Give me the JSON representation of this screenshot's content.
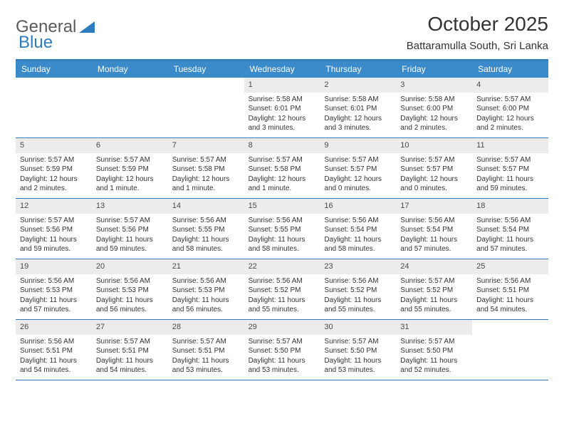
{
  "brand": {
    "part1": "General",
    "part2": "Blue"
  },
  "title": "October 2025",
  "location": "Battaramulla South, Sri Lanka",
  "colors": {
    "header_bg": "#3b8bca",
    "header_text": "#ffffff",
    "border": "#2f7bbf",
    "daynum_bg": "#ececec",
    "body_text": "#333333",
    "brand_grey": "#5a5a5a",
    "brand_blue": "#2f7bbf",
    "page_bg": "#ffffff"
  },
  "day_names": [
    "Sunday",
    "Monday",
    "Tuesday",
    "Wednesday",
    "Thursday",
    "Friday",
    "Saturday"
  ],
  "weeks": [
    [
      {
        "day": "",
        "sunrise": "",
        "sunset": "",
        "daylight": ""
      },
      {
        "day": "",
        "sunrise": "",
        "sunset": "",
        "daylight": ""
      },
      {
        "day": "",
        "sunrise": "",
        "sunset": "",
        "daylight": ""
      },
      {
        "day": "1",
        "sunrise": "Sunrise: 5:58 AM",
        "sunset": "Sunset: 6:01 PM",
        "daylight": "Daylight: 12 hours and 3 minutes."
      },
      {
        "day": "2",
        "sunrise": "Sunrise: 5:58 AM",
        "sunset": "Sunset: 6:01 PM",
        "daylight": "Daylight: 12 hours and 3 minutes."
      },
      {
        "day": "3",
        "sunrise": "Sunrise: 5:58 AM",
        "sunset": "Sunset: 6:00 PM",
        "daylight": "Daylight: 12 hours and 2 minutes."
      },
      {
        "day": "4",
        "sunrise": "Sunrise: 5:57 AM",
        "sunset": "Sunset: 6:00 PM",
        "daylight": "Daylight: 12 hours and 2 minutes."
      }
    ],
    [
      {
        "day": "5",
        "sunrise": "Sunrise: 5:57 AM",
        "sunset": "Sunset: 5:59 PM",
        "daylight": "Daylight: 12 hours and 2 minutes."
      },
      {
        "day": "6",
        "sunrise": "Sunrise: 5:57 AM",
        "sunset": "Sunset: 5:59 PM",
        "daylight": "Daylight: 12 hours and 1 minute."
      },
      {
        "day": "7",
        "sunrise": "Sunrise: 5:57 AM",
        "sunset": "Sunset: 5:58 PM",
        "daylight": "Daylight: 12 hours and 1 minute."
      },
      {
        "day": "8",
        "sunrise": "Sunrise: 5:57 AM",
        "sunset": "Sunset: 5:58 PM",
        "daylight": "Daylight: 12 hours and 1 minute."
      },
      {
        "day": "9",
        "sunrise": "Sunrise: 5:57 AM",
        "sunset": "Sunset: 5:57 PM",
        "daylight": "Daylight: 12 hours and 0 minutes."
      },
      {
        "day": "10",
        "sunrise": "Sunrise: 5:57 AM",
        "sunset": "Sunset: 5:57 PM",
        "daylight": "Daylight: 12 hours and 0 minutes."
      },
      {
        "day": "11",
        "sunrise": "Sunrise: 5:57 AM",
        "sunset": "Sunset: 5:57 PM",
        "daylight": "Daylight: 11 hours and 59 minutes."
      }
    ],
    [
      {
        "day": "12",
        "sunrise": "Sunrise: 5:57 AM",
        "sunset": "Sunset: 5:56 PM",
        "daylight": "Daylight: 11 hours and 59 minutes."
      },
      {
        "day": "13",
        "sunrise": "Sunrise: 5:57 AM",
        "sunset": "Sunset: 5:56 PM",
        "daylight": "Daylight: 11 hours and 59 minutes."
      },
      {
        "day": "14",
        "sunrise": "Sunrise: 5:56 AM",
        "sunset": "Sunset: 5:55 PM",
        "daylight": "Daylight: 11 hours and 58 minutes."
      },
      {
        "day": "15",
        "sunrise": "Sunrise: 5:56 AM",
        "sunset": "Sunset: 5:55 PM",
        "daylight": "Daylight: 11 hours and 58 minutes."
      },
      {
        "day": "16",
        "sunrise": "Sunrise: 5:56 AM",
        "sunset": "Sunset: 5:54 PM",
        "daylight": "Daylight: 11 hours and 58 minutes."
      },
      {
        "day": "17",
        "sunrise": "Sunrise: 5:56 AM",
        "sunset": "Sunset: 5:54 PM",
        "daylight": "Daylight: 11 hours and 57 minutes."
      },
      {
        "day": "18",
        "sunrise": "Sunrise: 5:56 AM",
        "sunset": "Sunset: 5:54 PM",
        "daylight": "Daylight: 11 hours and 57 minutes."
      }
    ],
    [
      {
        "day": "19",
        "sunrise": "Sunrise: 5:56 AM",
        "sunset": "Sunset: 5:53 PM",
        "daylight": "Daylight: 11 hours and 57 minutes."
      },
      {
        "day": "20",
        "sunrise": "Sunrise: 5:56 AM",
        "sunset": "Sunset: 5:53 PM",
        "daylight": "Daylight: 11 hours and 56 minutes."
      },
      {
        "day": "21",
        "sunrise": "Sunrise: 5:56 AM",
        "sunset": "Sunset: 5:53 PM",
        "daylight": "Daylight: 11 hours and 56 minutes."
      },
      {
        "day": "22",
        "sunrise": "Sunrise: 5:56 AM",
        "sunset": "Sunset: 5:52 PM",
        "daylight": "Daylight: 11 hours and 55 minutes."
      },
      {
        "day": "23",
        "sunrise": "Sunrise: 5:56 AM",
        "sunset": "Sunset: 5:52 PM",
        "daylight": "Daylight: 11 hours and 55 minutes."
      },
      {
        "day": "24",
        "sunrise": "Sunrise: 5:57 AM",
        "sunset": "Sunset: 5:52 PM",
        "daylight": "Daylight: 11 hours and 55 minutes."
      },
      {
        "day": "25",
        "sunrise": "Sunrise: 5:56 AM",
        "sunset": "Sunset: 5:51 PM",
        "daylight": "Daylight: 11 hours and 54 minutes."
      }
    ],
    [
      {
        "day": "26",
        "sunrise": "Sunrise: 5:56 AM",
        "sunset": "Sunset: 5:51 PM",
        "daylight": "Daylight: 11 hours and 54 minutes."
      },
      {
        "day": "27",
        "sunrise": "Sunrise: 5:57 AM",
        "sunset": "Sunset: 5:51 PM",
        "daylight": "Daylight: 11 hours and 54 minutes."
      },
      {
        "day": "28",
        "sunrise": "Sunrise: 5:57 AM",
        "sunset": "Sunset: 5:51 PM",
        "daylight": "Daylight: 11 hours and 53 minutes."
      },
      {
        "day": "29",
        "sunrise": "Sunrise: 5:57 AM",
        "sunset": "Sunset: 5:50 PM",
        "daylight": "Daylight: 11 hours and 53 minutes."
      },
      {
        "day": "30",
        "sunrise": "Sunrise: 5:57 AM",
        "sunset": "Sunset: 5:50 PM",
        "daylight": "Daylight: 11 hours and 53 minutes."
      },
      {
        "day": "31",
        "sunrise": "Sunrise: 5:57 AM",
        "sunset": "Sunset: 5:50 PM",
        "daylight": "Daylight: 11 hours and 52 minutes."
      },
      {
        "day": "",
        "sunrise": "",
        "sunset": "",
        "daylight": ""
      }
    ]
  ]
}
